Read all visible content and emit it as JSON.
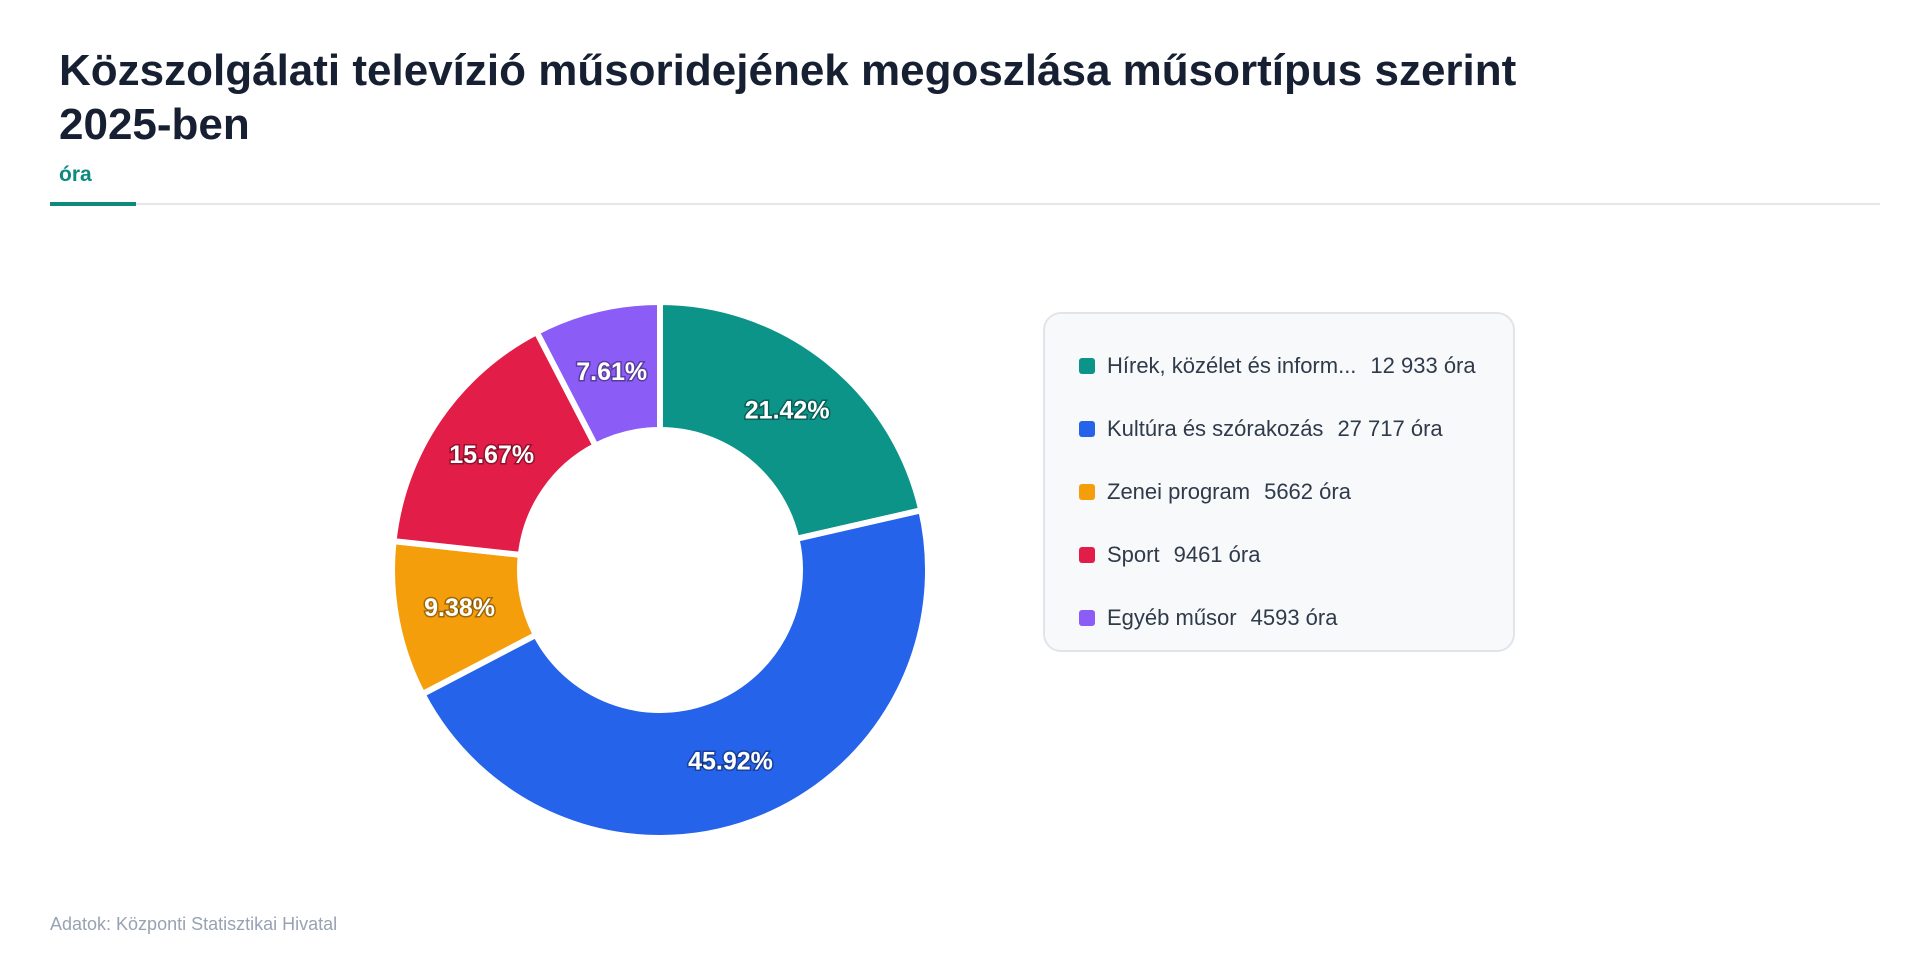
{
  "chart_data": {
    "type": "pie",
    "variant": "donut",
    "title": "Közszolgálati televízió műsoridejének megoszlása műsortípus szerint 2025-ben",
    "subtitle": "óra",
    "categories": [
      "Hírek, közélet és inform...",
      "Kultúra és szórakozás",
      "Zenei program",
      "Sport",
      "Egyéb műsor"
    ],
    "values": [
      12933,
      27717,
      5662,
      9461,
      4593
    ],
    "value_labels": [
      "12 933 óra",
      "27 717 óra",
      "5662 óra",
      "9461 óra",
      "4593 óra"
    ],
    "percent_labels": [
      "21.42%",
      "45.92%",
      "9.38%",
      "15.67%",
      "7.61%"
    ],
    "colors": [
      "#0d9488",
      "#2563eb",
      "#f59e0b",
      "#e11d48",
      "#8b5cf6"
    ],
    "legend_position": "right",
    "source": "Adatok: Központi Statisztikai Hivatal"
  }
}
